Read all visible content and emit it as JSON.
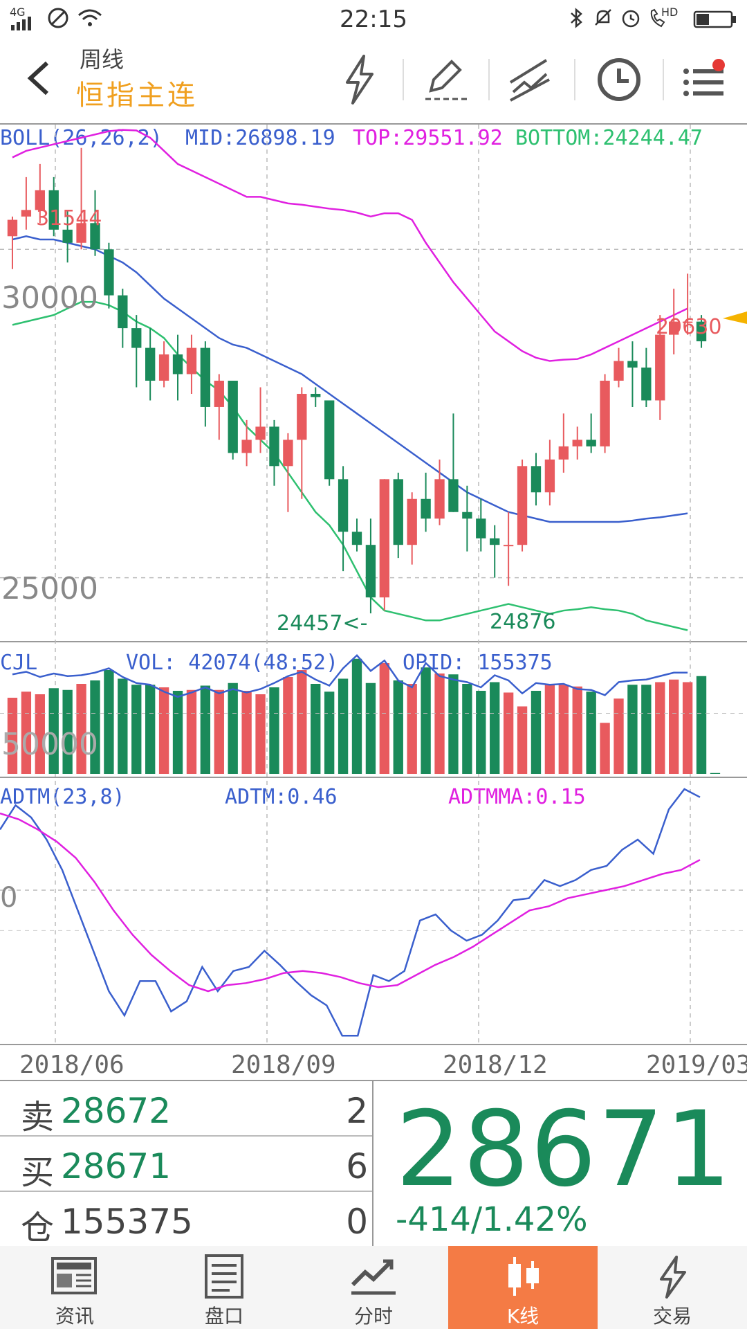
{
  "status_bar": {
    "network": "4G",
    "time": "22:15",
    "hd": "HD"
  },
  "header": {
    "period": "周线",
    "symbol": "恒指主连"
  },
  "boll": {
    "name": "BOLL(26,26,2)",
    "mid": "MID:26898.19",
    "top": "TOP:29551.92",
    "bottom": "BOTTOM:24244.47"
  },
  "cjl": {
    "name": "CJL",
    "vol": "VOL: 42074(48:52)",
    "opid": "OPID: 155375"
  },
  "adtm": {
    "name": "ADTM(23,8)",
    "value": "ADTM:0.46",
    "ma": "ADTMMA:0.15"
  },
  "price_labels": {
    "high": "31544",
    "low1": "24457<-",
    "low2": "24876",
    "high2": "29630",
    "y30000": "30000",
    "y25000": "25000",
    "vol_tick": "50000",
    "adtm_zero": "0"
  },
  "xaxis": [
    "2018/06",
    "2018/09",
    "2018/12",
    "2019/03"
  ],
  "quote": {
    "sell_label": "卖",
    "sell_price": "28672",
    "sell_qty": "2",
    "buy_label": "买",
    "buy_price": "28671",
    "buy_qty": "6",
    "oi_label": "仓",
    "oi_value": "155375",
    "oi_change": "0",
    "last": "28671",
    "change": "-414/1.42%"
  },
  "nav": [
    {
      "label": "资讯"
    },
    {
      "label": "盘口"
    },
    {
      "label": "分时"
    },
    {
      "label": "K线"
    },
    {
      "label": "交易"
    }
  ],
  "colors": {
    "up": "#e85a5e",
    "down": "#1a8a5a",
    "mid": "#3a5fcd",
    "top": "#e020e0",
    "bottom": "#2ec070",
    "accent": "#f47b45"
  },
  "chart_data": {
    "type": "candlestick",
    "price_range": [
      24100,
      31900
    ],
    "candles": [
      [
        30200,
        30500,
        29700,
        30450
      ],
      [
        30500,
        31100,
        30300,
        30600
      ],
      [
        30600,
        31300,
        30400,
        30900
      ],
      [
        30900,
        31100,
        30200,
        30300
      ],
      [
        30300,
        30600,
        29800,
        30100
      ],
      [
        30100,
        31544,
        30000,
        30400
      ],
      [
        30400,
        30900,
        29900,
        30000
      ],
      [
        30000,
        30100,
        29100,
        29300
      ],
      [
        29300,
        29400,
        28500,
        28800
      ],
      [
        28800,
        29000,
        27900,
        28500
      ],
      [
        28500,
        28800,
        27700,
        28000
      ],
      [
        28000,
        28600,
        27900,
        28400
      ],
      [
        28400,
        28700,
        27700,
        28100
      ],
      [
        28100,
        28700,
        27800,
        28500
      ],
      [
        28500,
        28600,
        27300,
        27600
      ],
      [
        27600,
        28100,
        27100,
        28000
      ],
      [
        28000,
        28000,
        26800,
        26900
      ],
      [
        26900,
        27400,
        26700,
        27100
      ],
      [
        27100,
        27900,
        26900,
        27300
      ],
      [
        27300,
        27400,
        26400,
        26700
      ],
      [
        26700,
        27200,
        26000,
        27100
      ],
      [
        27100,
        27900,
        26200,
        27800
      ],
      [
        27800,
        27900,
        27600,
        27750
      ],
      [
        27700,
        27700,
        26400,
        26500
      ],
      [
        26500,
        26700,
        25100,
        25700
      ],
      [
        25700,
        25900,
        25400,
        25500
      ],
      [
        25500,
        25900,
        24457,
        24700
      ],
      [
        24700,
        26500,
        24500,
        26500
      ],
      [
        26500,
        26600,
        25300,
        25500
      ],
      [
        25500,
        26300,
        25200,
        26200
      ],
      [
        26200,
        26600,
        25700,
        25900
      ],
      [
        25900,
        26800,
        25800,
        26500
      ],
      [
        26500,
        27500,
        26000,
        26000
      ],
      [
        26000,
        26400,
        25400,
        25900
      ],
      [
        25900,
        26200,
        25400,
        25600
      ],
      [
        25600,
        25800,
        25000,
        25500
      ],
      [
        25500,
        26000,
        24876,
        25500
      ],
      [
        25500,
        26800,
        25400,
        26700
      ],
      [
        26700,
        26900,
        26100,
        26300
      ],
      [
        26300,
        27100,
        26100,
        26800
      ],
      [
        26800,
        27500,
        26600,
        27000
      ],
      [
        27000,
        27300,
        26800,
        27100
      ],
      [
        27100,
        27500,
        26900,
        27000
      ],
      [
        27000,
        28100,
        26900,
        28000
      ],
      [
        28000,
        28500,
        27900,
        28300
      ],
      [
        28300,
        28600,
        27600,
        28200
      ],
      [
        28200,
        28500,
        27600,
        27700
      ],
      [
        27700,
        29000,
        27400,
        28700
      ],
      [
        28700,
        29400,
        28400,
        28900
      ],
      [
        28900,
        29630,
        28700,
        28900
      ],
      [
        28900,
        29000,
        28500,
        28600
      ]
    ],
    "boll_top": [
      31400,
      31500,
      31550,
      31600,
      31650,
      31700,
      31750,
      31800,
      31820,
      31810,
      31700,
      31500,
      31300,
      31200,
      31100,
      31000,
      30900,
      30800,
      30800,
      30750,
      30700,
      30680,
      30650,
      30620,
      30600,
      30560,
      30500,
      30550,
      30550,
      30450,
      30100,
      29800,
      29500,
      29250,
      29000,
      28750,
      28600,
      28450,
      28350,
      28300,
      28320,
      28330,
      28400,
      28500,
      28600,
      28700,
      28800,
      28900,
      29000,
      29100
    ],
    "boll_mid": [
      30150,
      30200,
      30150,
      30150,
      30100,
      30050,
      30000,
      29900,
      29800,
      29650,
      29450,
      29250,
      29100,
      28950,
      28800,
      28650,
      28550,
      28500,
      28400,
      28300,
      28200,
      28100,
      27950,
      27800,
      27650,
      27500,
      27350,
      27200,
      27050,
      26900,
      26750,
      26600,
      26450,
      26300,
      26200,
      26100,
      26000,
      25950,
      25900,
      25850,
      25850,
      25850,
      25850,
      25850,
      25850,
      25870,
      25900,
      25920,
      25950,
      25980
    ],
    "boll_bottom": [
      28850,
      28900,
      28950,
      29000,
      29100,
      29200,
      29200,
      29150,
      29050,
      28900,
      28800,
      28650,
      28400,
      28200,
      28000,
      27850,
      27600,
      27300,
      27100,
      26900,
      26600,
      26300,
      26000,
      25800,
      25500,
      25100,
      24700,
      24500,
      24450,
      24400,
      24350,
      24350,
      24400,
      24450,
      24500,
      24550,
      24600,
      24550,
      24500,
      24450,
      24500,
      24520,
      24550,
      24520,
      24500,
      24450,
      24350,
      24300,
      24250,
      24200
    ],
    "volume": [
      88,
      95,
      92,
      99,
      97,
      104,
      108,
      120,
      110,
      103,
      103,
      100,
      96,
      97,
      102,
      97,
      105,
      96,
      92,
      100,
      112,
      120,
      104,
      95,
      110,
      133,
      105,
      128,
      108,
      104,
      123,
      116,
      115,
      104,
      96,
      106,
      94,
      78,
      96,
      103,
      103,
      101,
      95,
      59,
      87,
      103,
      103,
      106,
      109,
      106,
      113,
      1
    ],
    "volume_ma": [
      115,
      118,
      112,
      116,
      113,
      114,
      117,
      122,
      112,
      105,
      103,
      95,
      89,
      94,
      100,
      93,
      98,
      94,
      98,
      105,
      113,
      118,
      109,
      102,
      122,
      137,
      119,
      131,
      108,
      100,
      128,
      113,
      109,
      106,
      100,
      114,
      108,
      93,
      105,
      103,
      104,
      98,
      97,
      91,
      106,
      108,
      109,
      113,
      117,
      117
    ],
    "adtm": [
      0.3,
      0.42,
      0.36,
      0.25,
      0.1,
      -0.1,
      -0.3,
      -0.5,
      -0.62,
      -0.45,
      -0.45,
      -0.6,
      -0.55,
      -0.38,
      -0.5,
      -0.4,
      -0.38,
      -0.3,
      -0.37,
      -0.45,
      -0.52,
      -0.57,
      -0.72,
      -0.72,
      -0.42,
      -0.45,
      -0.4,
      -0.15,
      -0.12,
      -0.2,
      -0.25,
      -0.22,
      -0.15,
      -0.05,
      -0.04,
      0.05,
      0.02,
      0.05,
      0.1,
      0.12,
      0.2,
      0.25,
      0.18,
      0.4,
      0.5,
      0.46
    ],
    "adtm_ma": [
      0.38,
      0.35,
      0.3,
      0.24,
      0.16,
      0.04,
      -0.1,
      -0.22,
      -0.32,
      -0.4,
      -0.47,
      -0.5,
      -0.47,
      -0.46,
      -0.44,
      -0.41,
      -0.4,
      -0.41,
      -0.43,
      -0.46,
      -0.48,
      -0.47,
      -0.42,
      -0.37,
      -0.33,
      -0.28,
      -0.22,
      -0.16,
      -0.1,
      -0.08,
      -0.04,
      -0.02,
      0.0,
      0.02,
      0.05,
      0.08,
      0.1,
      0.15
    ]
  }
}
